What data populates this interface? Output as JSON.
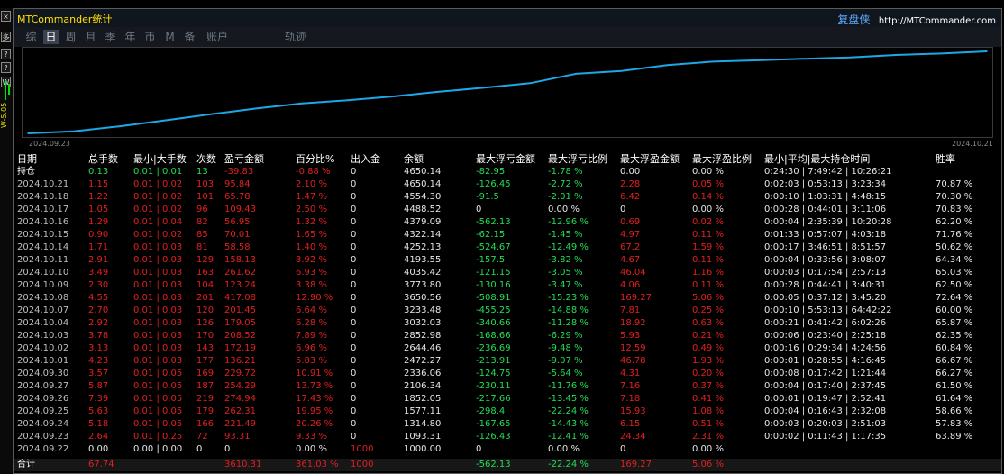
{
  "top_strip_text": "",
  "side": {
    "buttons": [
      "×",
      "多",
      "?",
      "?",
      "W"
    ],
    "value_label": "W-5.05"
  },
  "window": {
    "title": "MTCommander统计",
    "brand_name": "复盘侠",
    "brand_url": "http://MTCommander.com"
  },
  "tabs": [
    {
      "label": "综",
      "active": false
    },
    {
      "label": "日",
      "active": true
    },
    {
      "label": "周",
      "active": false
    },
    {
      "label": "月",
      "active": false
    },
    {
      "label": "季",
      "active": false
    },
    {
      "label": "年",
      "active": false
    },
    {
      "label": "币",
      "active": false
    },
    {
      "label": "M",
      "active": false
    },
    {
      "label": "备",
      "active": false
    },
    {
      "label": "账户",
      "active": false
    },
    {
      "label": "轨迹",
      "active": false
    }
  ],
  "colors": {
    "red": "#e02020",
    "green": "#22dd55",
    "white": "#e6e6e6",
    "gray": "#bfbfbf",
    "line": "#1ea7e6"
  },
  "chart_data": {
    "type": "line",
    "x_start_label": "2024.09.23",
    "x_end_label": "2024.10.21",
    "x": [
      "2024.09.22",
      "2024.09.23",
      "2024.09.24",
      "2024.09.25",
      "2024.09.26",
      "2024.09.27",
      "2024.09.30",
      "2024.10.01",
      "2024.10.02",
      "2024.10.03",
      "2024.10.04",
      "2024.10.07",
      "2024.10.08",
      "2024.10.09",
      "2024.10.10",
      "2024.10.11",
      "2024.10.14",
      "2024.10.15",
      "2024.10.16",
      "2024.10.17",
      "2024.10.18",
      "2024.10.21"
    ],
    "values": [
      1000.0,
      1093.31,
      1314.8,
      1577.11,
      1852.05,
      2106.34,
      2336.06,
      2472.27,
      2644.46,
      2852.98,
      3032.03,
      3233.48,
      3650.56,
      3773.8,
      4035.42,
      4193.55,
      4252.13,
      4322.14,
      4379.09,
      4488.52,
      4554.3,
      4650.14
    ],
    "grid": false
  },
  "table": {
    "headers": [
      "日期",
      "总手数",
      "最小|大手数",
      "次数",
      "盈亏金额",
      "百分比%",
      "出入金",
      "余额",
      "最大浮亏金额",
      "最大浮亏比例",
      "最大浮盈金额",
      "最大浮盈比例",
      "最小|平均|最大持仓时间",
      "胜率"
    ],
    "position_row": [
      "持仓",
      "0.13",
      "0.01 | 0.01",
      "13",
      "-39.83",
      "-0.88 %",
      "0",
      "4650.14",
      "-82.95",
      "-1.78 %",
      "0.00",
      "0.00 %",
      "0:24:30 | 7:49:42 | 10:26:21",
      ""
    ],
    "rows": [
      [
        "2024.10.21",
        "1.15",
        "0.01 | 0.02",
        "103",
        "95.84",
        "2.10 %",
        "0",
        "4650.14",
        "-126.45",
        "-2.72 %",
        "2.28",
        "0.05 %",
        "0:02:03 | 0:53:13 | 3:23:34",
        "70.87 %"
      ],
      [
        "2024.10.18",
        "1.22",
        "0.01 | 0.02",
        "101",
        "65.78",
        "1.47 %",
        "0",
        "4554.30",
        "-91.5",
        "-2.01 %",
        "6.42",
        "0.14 %",
        "0:00:10 | 1:03:31 | 4:48:15",
        "70.30 %"
      ],
      [
        "2024.10.17",
        "1.05",
        "0.01 | 0.02",
        "96",
        "109.43",
        "2.50 %",
        "0",
        "4488.52",
        "0",
        "0.00 %",
        "0",
        "0.00 %",
        "0:00:28 | 0:44:01 | 3:11:06",
        "70.83 %"
      ],
      [
        "2024.10.16",
        "1.29",
        "0.01 | 0.04",
        "82",
        "56.95",
        "1.32 %",
        "0",
        "4379.09",
        "-562.13",
        "-12.96 %",
        "0.69",
        "0.02 %",
        "0:00:04 | 2:35:39 | 10:20:28",
        "62.20 %"
      ],
      [
        "2024.10.15",
        "0.90",
        "0.01 | 0.02",
        "85",
        "70.01",
        "1.65 %",
        "0",
        "4322.14",
        "-62.15",
        "-1.45 %",
        "4.97",
        "0.11 %",
        "0:01:33 | 0:57:07 | 4:03:18",
        "71.76 %"
      ],
      [
        "2024.10.14",
        "1.71",
        "0.01 | 0.03",
        "81",
        "58.58",
        "1.40 %",
        "0",
        "4252.13",
        "-524.67",
        "-12.49 %",
        "67.2",
        "1.59 %",
        "0:00:17 | 3:46:51 | 8:51:57",
        "50.62 %"
      ],
      [
        "2024.10.11",
        "2.91",
        "0.01 | 0.03",
        "129",
        "158.13",
        "3.92 %",
        "0",
        "4193.55",
        "-157.5",
        "-3.82 %",
        "4.67",
        "0.11 %",
        "0:00:04 | 0:33:56 | 3:08:07",
        "64.34 %"
      ],
      [
        "2024.10.10",
        "3.49",
        "0.01 | 0.03",
        "163",
        "261.62",
        "6.93 %",
        "0",
        "4035.42",
        "-121.15",
        "-3.05 %",
        "46.04",
        "1.16 %",
        "0:00:03 | 0:17:54 | 2:57:13",
        "65.03 %"
      ],
      [
        "2024.10.09",
        "2.30",
        "0.01 | 0.03",
        "104",
        "123.24",
        "3.38 %",
        "0",
        "3773.80",
        "-130.16",
        "-3.47 %",
        "4.06",
        "0.11 %",
        "0:00:28 | 0:44:41 | 3:40:31",
        "62.50 %"
      ],
      [
        "2024.10.08",
        "4.55",
        "0.01 | 0.03",
        "201",
        "417.08",
        "12.90 %",
        "0",
        "3650.56",
        "-508.91",
        "-15.23 %",
        "169.27",
        "5.06 %",
        "0:00:05 | 0:37:12 | 3:45:20",
        "72.64 %"
      ],
      [
        "2024.10.07",
        "2.70",
        "0.01 | 0.03",
        "120",
        "201.45",
        "6.64 %",
        "0",
        "3233.48",
        "-455.25",
        "-14.88 %",
        "7.81",
        "0.25 %",
        "0:00:10 | 5:53:13 | 64:42:22",
        "60.00 %"
      ],
      [
        "2024.10.04",
        "2.92",
        "0.01 | 0.03",
        "126",
        "179.05",
        "6.28 %",
        "0",
        "3032.03",
        "-340.66",
        "-11.28 %",
        "18.92",
        "0.63 %",
        "0:00:21 | 0:41:42 | 6:02:26",
        "65.87 %"
      ],
      [
        "2024.10.03",
        "3.78",
        "0.01 | 0.03",
        "170",
        "208.52",
        "7.89 %",
        "0",
        "2852.98",
        "-168.66",
        "-6.29 %",
        "5.93",
        "0.21 %",
        "0:00:06 | 0:23:40 | 2:25:18",
        "62.35 %"
      ],
      [
        "2024.10.02",
        "3.13",
        "0.01 | 0.03",
        "143",
        "172.19",
        "6.96 %",
        "0",
        "2644.46",
        "-236.69",
        "-9.48 %",
        "12.59",
        "0.49 %",
        "0:00:16 | 0:29:34 | 4:24:56",
        "60.84 %"
      ],
      [
        "2024.10.01",
        "4.23",
        "0.01 | 0.03",
        "177",
        "136.21",
        "5.83 %",
        "0",
        "2472.27",
        "-213.91",
        "-9.07 %",
        "46.78",
        "1.93 %",
        "0:00:01 | 0:28:55 | 4:16:45",
        "66.67 %"
      ],
      [
        "2024.09.30",
        "3.57",
        "0.01 | 0.05",
        "169",
        "229.72",
        "10.91 %",
        "0",
        "2336.06",
        "-124.75",
        "-5.64 %",
        "4.31",
        "0.20 %",
        "0:00:08 | 0:17:42 | 1:21:44",
        "66.27 %"
      ],
      [
        "2024.09.27",
        "5.87",
        "0.01 | 0.05",
        "187",
        "254.29",
        "13.73 %",
        "0",
        "2106.34",
        "-230.11",
        "-11.76 %",
        "7.16",
        "0.37 %",
        "0:00:04 | 0:17:40 | 2:37:45",
        "61.50 %"
      ],
      [
        "2024.09.26",
        "7.39",
        "0.01 | 0.05",
        "219",
        "274.94",
        "17.43 %",
        "0",
        "1852.05",
        "-217.66",
        "-13.45 %",
        "7.18",
        "0.41 %",
        "0:00:01 | 0:19:47 | 2:52:41",
        "61.64 %"
      ],
      [
        "2024.09.25",
        "5.63",
        "0.01 | 0.05",
        "179",
        "262.31",
        "19.95 %",
        "0",
        "1577.11",
        "-298.4",
        "-22.24 %",
        "15.93",
        "1.08 %",
        "0:00:04 | 0:16:43 | 2:32:08",
        "58.66 %"
      ],
      [
        "2024.09.24",
        "5.18",
        "0.01 | 0.05",
        "166",
        "221.49",
        "20.26 %",
        "0",
        "1314.80",
        "-167.65",
        "-14.43 %",
        "6.15",
        "0.51 %",
        "0:00:03 | 0:20:03 | 2:51:03",
        "57.83 %"
      ],
      [
        "2024.09.23",
        "2.64",
        "0.01 | 0.25",
        "72",
        "93.31",
        "9.33 %",
        "0",
        "1093.31",
        "-126.43",
        "-12.41 %",
        "24.34",
        "2.31 %",
        "0:00:02 | 0:11:43 | 1:17:35",
        "63.89 %"
      ],
      [
        "2024.09.22",
        "0.00",
        "0.00 | 0.00",
        "0",
        "0",
        "0.00 %",
        "1000",
        "1000.00",
        "0",
        "0.00 %",
        "0",
        "0.00 %",
        "",
        ""
      ]
    ],
    "total_row": [
      "合计",
      "67.74",
      "",
      "",
      "3610.31",
      "361.03 %",
      "1000",
      "",
      "-562.13",
      "-22.24 %",
      "169.27",
      "5.06 %",
      "",
      ""
    ]
  }
}
